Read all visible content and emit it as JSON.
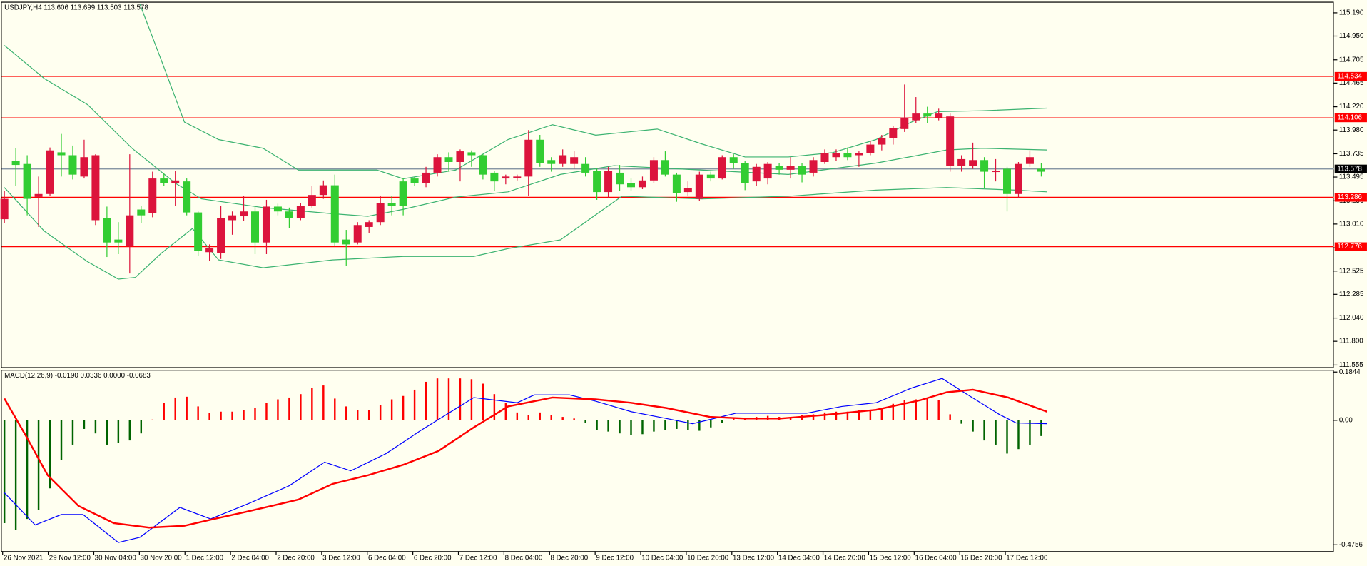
{
  "chart_data": [
    {
      "type": "candlestick",
      "title": "USDJPY,H4  113.606 113.699 113.503 113.578",
      "categories": [
        "26 Nov 2021",
        null,
        null,
        null,
        "29 Nov 12:00",
        null,
        null,
        null,
        "30 Nov 04:00",
        null,
        null,
        null,
        "30 Nov 20:00",
        null,
        null,
        null,
        "1 Dec 12:00",
        null,
        null,
        null,
        "2 Dec 04:00",
        null,
        null,
        null,
        "2 Dec 20:00",
        null,
        null,
        null,
        "3 Dec 12:00",
        null,
        null,
        null,
        "6 Dec 04:00",
        null,
        null,
        null,
        "6 Dec 20:00",
        null,
        null,
        null,
        "7 Dec 12:00",
        null,
        null,
        null,
        "8 Dec 04:00",
        null,
        null,
        null,
        "8 Dec 20:00",
        null,
        null,
        null,
        "9 Dec 12:00",
        null,
        null,
        null,
        "10 Dec 04:00",
        null,
        null,
        null,
        "10 Dec 20:00",
        null,
        null,
        null,
        "13 Dec 12:00",
        null,
        null,
        null,
        "14 Dec 04:00",
        null,
        null,
        null,
        "14 Dec 20:00",
        null,
        null,
        null,
        "15 Dec 12:00",
        null,
        null,
        null,
        "16 Dec 04:00",
        null,
        null,
        null,
        "16 Dec 20:00",
        null,
        null,
        null,
        "17 Dec 12:00",
        null,
        null,
        null
      ],
      "open": [
        113.27,
        113.62,
        113.27,
        113.32,
        113.77,
        113.72,
        113.52,
        113.7,
        113.72,
        112.82,
        112.82,
        113.1,
        113.1,
        113.48,
        113.43,
        113.46,
        113.13,
        112.73,
        112.76,
        113.07,
        113.1,
        113.14,
        112.82,
        113.19,
        113.14,
        113.07,
        113.2,
        113.31,
        113.41,
        112.82,
        112.8,
        113.0,
        113.03,
        113.23,
        113.2,
        113.2,
        113.43,
        113.54,
        113.7,
        113.65,
        113.76,
        113.72,
        113.52,
        113.45,
        113.5,
        113.5,
        113.88,
        113.64,
        113.63,
        113.72,
        113.7,
        113.54,
        113.34,
        113.56,
        113.42,
        113.39,
        113.46,
        113.67,
        113.52,
        113.33,
        113.38,
        113.52,
        113.48,
        113.7,
        113.64,
        113.43,
        113.6,
        113.63,
        113.57,
        113.61,
        113.52,
        113.67,
        113.74,
        113.74,
        113.7,
        113.74,
        113.83,
        113.9,
        114.0,
        114.11,
        114.15,
        114.12,
        114.15,
        114.12,
        113.68,
        113.67,
        113.55,
        113.56,
        113.32,
        113.63,
        113.7,
        113.55
      ],
      "high": [
        113.35,
        113.79,
        113.72,
        113.5,
        113.8,
        113.94,
        113.82,
        113.88,
        113.73,
        113.19,
        113.03,
        113.73,
        113.2,
        113.55,
        113.53,
        113.56,
        113.48,
        113.14,
        112.8,
        113.2,
        113.14,
        113.3,
        113.2,
        113.26,
        113.22,
        113.18,
        113.23,
        113.4,
        113.46,
        113.52,
        112.95,
        113.03,
        113.05,
        113.3,
        113.3,
        113.48,
        113.5,
        113.6,
        113.73,
        113.75,
        113.78,
        113.77,
        113.73,
        113.56,
        113.52,
        113.52,
        113.98,
        113.93,
        113.7,
        113.78,
        113.76,
        113.7,
        113.58,
        113.6,
        113.62,
        113.48,
        113.5,
        113.7,
        113.76,
        113.54,
        113.45,
        113.55,
        113.55,
        113.72,
        113.73,
        113.66,
        113.63,
        113.65,
        113.64,
        113.7,
        113.64,
        113.7,
        113.78,
        113.78,
        113.8,
        113.76,
        113.87,
        113.93,
        114.02,
        114.45,
        114.32,
        114.22,
        114.2,
        114.15,
        113.72,
        113.85,
        113.7,
        113.68,
        113.6,
        113.65,
        113.77,
        113.64
      ],
      "low": [
        113.02,
        113.4,
        113.1,
        112.98,
        113.3,
        113.5,
        113.47,
        113.48,
        113.0,
        112.67,
        112.7,
        112.5,
        113.02,
        113.08,
        113.4,
        113.2,
        113.1,
        112.68,
        112.63,
        112.65,
        112.9,
        113.04,
        112.7,
        112.7,
        113.1,
        112.97,
        113.05,
        113.18,
        113.27,
        112.78,
        112.58,
        112.8,
        112.92,
        113.0,
        113.1,
        113.1,
        113.4,
        113.39,
        113.5,
        113.55,
        113.45,
        113.6,
        113.47,
        113.35,
        113.42,
        113.46,
        113.3,
        113.6,
        113.55,
        113.6,
        113.58,
        113.5,
        113.26,
        113.28,
        113.35,
        113.35,
        113.37,
        113.43,
        113.5,
        113.24,
        113.3,
        113.25,
        113.45,
        113.47,
        113.58,
        113.36,
        113.4,
        113.42,
        113.52,
        113.48,
        113.44,
        113.5,
        113.63,
        113.66,
        113.67,
        113.6,
        113.72,
        113.77,
        113.83,
        113.96,
        114.05,
        114.05,
        114.08,
        113.55,
        113.55,
        113.58,
        113.38,
        113.45,
        113.14,
        113.28,
        113.6,
        113.5
      ],
      "close": [
        113.06,
        113.66,
        113.63,
        113.29,
        113.32,
        113.75,
        113.72,
        113.5,
        113.05,
        113.07,
        112.85,
        112.78,
        113.16,
        113.12,
        113.48,
        113.43,
        113.45,
        113.13,
        112.72,
        112.71,
        113.05,
        113.09,
        113.14,
        112.82,
        113.19,
        113.14,
        113.07,
        113.2,
        113.31,
        113.41,
        112.85,
        112.82,
        112.98,
        113.03,
        113.23,
        113.45,
        113.48,
        113.43,
        113.54,
        113.7,
        113.65,
        113.75,
        113.72,
        113.54,
        113.48,
        113.49,
        113.5,
        113.88,
        113.67,
        113.63,
        113.63,
        113.63,
        113.56,
        113.34,
        113.54,
        113.43,
        113.39,
        113.46,
        113.67,
        113.52,
        113.34,
        113.27,
        113.52,
        113.48,
        113.7,
        113.64,
        113.45,
        113.48,
        113.61,
        113.57,
        113.61,
        113.54,
        113.65,
        113.7,
        113.74,
        113.72,
        113.74,
        113.83,
        113.9,
        113.99,
        114.08,
        114.15,
        114.11,
        113.61,
        113.61,
        113.61,
        113.67,
        113.55,
        113.58,
        113.32,
        113.63,
        113.58
      ],
      "up_color": "#32cd32",
      "down_color": "#dc143c",
      "series": [
        {
          "color": "#3cb371",
          "x": [
            11.9,
            13.8,
            15.8,
            18.8,
            22.7,
            25.8,
            28.8,
            32.7,
            35,
            39.6,
            44.2,
            48.1,
            51.9,
            57.3,
            61.2,
            65,
            68.8,
            72.7,
            76.5,
            79.6,
            81.9,
            85.8,
            91.5
          ],
          "values": [
            115.277,
            114.692,
            114.062,
            113.882,
            113.792,
            113.567,
            113.567,
            113.567,
            113.477,
            113.567,
            113.882,
            114.035,
            113.927,
            113.99,
            113.837,
            113.702,
            113.702,
            113.747,
            113.882,
            114.062,
            114.17,
            114.179,
            114.206
          ]
        },
        {
          "color": "#3cb371",
          "x": [
            0,
            3.5,
            7.3,
            11.2,
            15,
            17.3,
            22.7,
            28.8,
            31.9,
            35,
            39.6,
            44.2,
            48.8,
            53.5,
            61.2,
            68.8,
            76.5,
            82.7,
            85.8,
            91.5
          ],
          "values": [
            114.854,
            114.512,
            114.242,
            113.792,
            113.432,
            113.27,
            113.18,
            113.117,
            113.09,
            113.162,
            113.288,
            113.342,
            113.522,
            113.612,
            113.567,
            113.522,
            113.639,
            113.774,
            113.792,
            113.774
          ]
        },
        {
          "color": "#3cb371",
          "x": [
            0,
            3.5,
            7.3,
            10,
            11.5,
            13.8,
            16.5,
            18.8,
            22.7,
            28.8,
            35,
            41.2,
            44.2,
            48.8,
            54.2,
            61.2,
            68.8,
            76.5,
            82.7,
            88.8,
            91.5
          ],
          "values": [
            113.387,
            112.937,
            112.622,
            112.442,
            112.46,
            112.712,
            112.964,
            112.64,
            112.559,
            112.64,
            112.676,
            112.676,
            112.757,
            112.847,
            113.297,
            113.27,
            113.297,
            113.36,
            113.387,
            113.36,
            113.342
          ]
        }
      ],
      "levels": [
        {
          "value": 114.534,
          "color": "#ff0000"
        },
        {
          "value": 114.106,
          "color": "#ff0000"
        },
        {
          "value": 113.286,
          "color": "#ff0000"
        },
        {
          "value": 112.776,
          "color": "#ff0000"
        }
      ],
      "last_price": {
        "value": 113.578,
        "color": "#778899"
      },
      "ylim": [
        111.524,
        115.304
      ],
      "yticks": [
        {
          "value": 115.19,
          "label": "115.190"
        },
        {
          "value": 114.95,
          "label": "114.950"
        },
        114.705,
        114.465,
        {
          "value": 114.22,
          "label": "114.220"
        },
        {
          "value": 113.98,
          "label": "113.980"
        },
        113.735,
        113.495,
        {
          "value": 113.25,
          "label": "113.250"
        },
        {
          "value": 113.01,
          "label": "113.010"
        },
        112.765,
        112.525,
        112.285,
        {
          "value": 112.04,
          "label": "112.040"
        },
        {
          "value": 111.8,
          "label": "111.800"
        },
        111.555
      ]
    },
    {
      "type": "macd",
      "title": "MACD(12,26,9) -0.0190 0.0336 0.0000 -0.0683",
      "values": [
        -0.393,
        -0.42,
        -0.377,
        -0.343,
        -0.26,
        -0.153,
        -0.093,
        -0.033,
        -0.05,
        -0.093,
        -0.087,
        -0.077,
        -0.05,
        0.003,
        0.067,
        0.087,
        0.09,
        0.053,
        0.027,
        0.033,
        0.033,
        0.04,
        0.047,
        0.067,
        0.08,
        0.087,
        0.1,
        0.123,
        0.133,
        0.083,
        0.053,
        0.04,
        0.04,
        0.057,
        0.08,
        0.093,
        0.117,
        0.147,
        0.16,
        0.16,
        0.16,
        0.157,
        0.14,
        0.1,
        0.067,
        0.03,
        0.02,
        0.03,
        0.02,
        0.013,
        0.007,
        -0.01,
        -0.037,
        -0.043,
        -0.05,
        -0.057,
        -0.053,
        -0.043,
        -0.037,
        -0.033,
        -0.037,
        -0.04,
        -0.027,
        -0.01,
        0.007,
        0.01,
        0.013,
        0.017,
        0.013,
        0.013,
        0.02,
        0.023,
        0.03,
        0.033,
        0.033,
        0.04,
        0.04,
        0.047,
        0.063,
        0.077,
        0.08,
        0.083,
        0.077,
        0.023,
        -0.013,
        -0.043,
        -0.077,
        -0.093,
        -0.127,
        -0.11,
        -0.093,
        -0.06
      ],
      "up_color": "#ff0000",
      "down_color": "#006400",
      "series": [
        {
          "color": "#0000ff",
          "width": 1,
          "x": [
            0,
            2.7,
            5,
            6.9,
            10,
            11.9,
            15.4,
            18.1,
            21.5,
            25,
            28.1,
            30.4,
            33.5,
            36.5,
            41.2,
            45,
            46.5,
            49.6,
            51.9,
            55,
            58.1,
            60.4,
            64.2,
            67.3,
            70.4,
            73.5,
            76.5,
            79.6,
            82.3,
            84.2,
            87.3,
            88.8,
            91.5
          ],
          "values": [
            -0.277,
            -0.4,
            -0.36,
            -0.36,
            -0.467,
            -0.447,
            -0.333,
            -0.377,
            -0.317,
            -0.25,
            -0.16,
            -0.193,
            -0.127,
            -0.04,
            0.087,
            0.067,
            0.097,
            0.097,
            0.073,
            0.033,
            0.007,
            -0.013,
            0.027,
            0.027,
            0.027,
            0.053,
            0.067,
            0.123,
            0.16,
            0.107,
            0.023,
            -0.01,
            -0.013
          ]
        },
        {
          "color": "#ff0000",
          "width": 2,
          "x": [
            0,
            1.9,
            3.8,
            6.5,
            9.6,
            12.7,
            15.8,
            18.1,
            21.2,
            25.8,
            28.8,
            31.9,
            35,
            38.1,
            41.2,
            44.2,
            48.1,
            51.9,
            55,
            58.1,
            61.9,
            65,
            68.1,
            71.9,
            76.5,
            80.4,
            82.7,
            85,
            88.1,
            91.5
          ],
          "values": [
            0.083,
            -0.06,
            -0.21,
            -0.327,
            -0.393,
            -0.41,
            -0.403,
            -0.38,
            -0.35,
            -0.303,
            -0.243,
            -0.21,
            -0.17,
            -0.117,
            -0.027,
            0.053,
            0.087,
            0.08,
            0.067,
            0.047,
            0.013,
            0.007,
            0.007,
            0.02,
            0.04,
            0.077,
            0.107,
            0.117,
            0.087,
            0.033
          ]
        }
      ],
      "ylim": [
        -0.5,
        0.193
      ],
      "yticks": [
        0.1844,
        {
          "value": 0,
          "label": "0.00"
        },
        -0.4756
      ]
    }
  ]
}
